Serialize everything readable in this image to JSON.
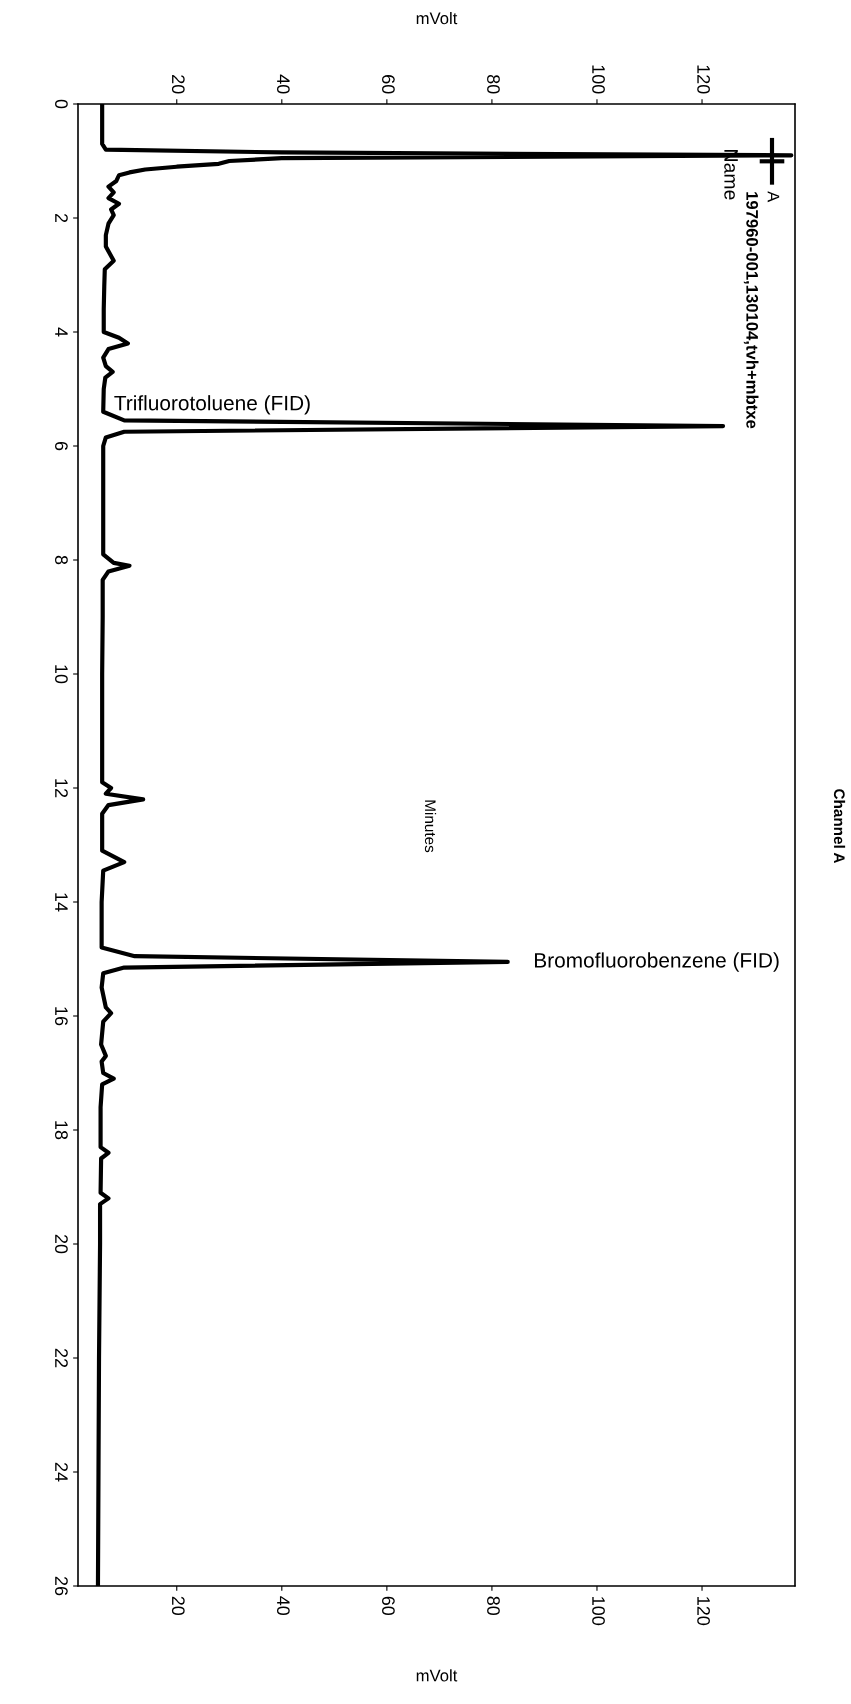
{
  "chart_data": {
    "type": "line",
    "orientation": "horizontal",
    "title": "Channel A",
    "ylabel": "Minutes",
    "xlabel": "mVolt",
    "x2label": "mVolt",
    "legend_title": "Name",
    "legend": "top right",
    "marker": "none",
    "line_style": "solid",
    "grid": false,
    "ylim": [
      26,
      0
    ],
    "yticks": [
      0,
      2,
      4,
      6,
      8,
      10,
      12,
      14,
      16,
      18,
      20,
      22,
      24,
      26
    ],
    "xlim": [
      1.2,
      137.7
    ],
    "xticks": [
      20,
      40,
      60,
      80,
      100,
      120
    ],
    "x2lim": [
      1.2,
      137.7
    ],
    "x2ticks": [
      20,
      40,
      60,
      80,
      100,
      120
    ],
    "annotations": [
      "Trifluorotoluene (FID)",
      "Bromofluorobenzene (FID)",
      "197960-001,130104,tvh+mbtxe"
    ],
    "series": [
      {
        "name": "A",
        "color": "#000000",
        "x": [
          0,
          0.7,
          0.8,
          0.85,
          0.9,
          0.95,
          1.0,
          1.05,
          1.1,
          1.15,
          1.2,
          1.25,
          1.35,
          1.45,
          1.55,
          1.65,
          1.75,
          1.85,
          1.95,
          2.1,
          2.3,
          2.5,
          2.75,
          2.9,
          3.2,
          3.6,
          4.0,
          4.1,
          4.2,
          4.3,
          4.45,
          4.6,
          4.7,
          4.8,
          5.0,
          5.4,
          5.55,
          5.65,
          5.75,
          5.85,
          6.0,
          7.0,
          7.9,
          8.05,
          8.1,
          8.2,
          8.35,
          9,
          10,
          11,
          11.9,
          12.0,
          12.1,
          12.2,
          12.3,
          12.45,
          13.1,
          13.3,
          13.45,
          14,
          14.8,
          14.95,
          15.05,
          15.15,
          15.25,
          15.5,
          15.85,
          15.95,
          16.1,
          16.5,
          16.7,
          16.8,
          17.0,
          17.1,
          17.2,
          17.6,
          18.3,
          18.4,
          18.5,
          19.1,
          19.2,
          19.3,
          20,
          22,
          24,
          26
        ],
        "values": [
          5.8,
          5.8,
          6.5,
          40,
          137,
          40,
          30,
          28,
          20,
          14,
          11,
          9,
          8.5,
          7,
          8,
          7,
          9,
          7.5,
          8,
          7,
          6.5,
          6.5,
          8,
          6.3,
          6.2,
          6.1,
          6.1,
          9,
          10.7,
          7,
          6,
          6.5,
          7.8,
          6.4,
          6.1,
          6.0,
          10,
          124,
          10,
          6.5,
          6,
          6,
          6,
          8,
          11,
          7,
          5.9,
          5.9,
          5.8,
          5.8,
          5.8,
          7.5,
          6.5,
          13.6,
          7,
          5.8,
          5.8,
          10,
          6,
          5.7,
          5.7,
          12,
          83,
          10,
          6,
          5.7,
          6.5,
          7.5,
          6,
          5.6,
          6.5,
          5.7,
          6,
          8,
          5.8,
          5.5,
          5.5,
          7,
          5.6,
          5.5,
          7,
          5.4,
          5.4,
          5.2,
          5.1,
          5.0
        ]
      }
    ]
  }
}
